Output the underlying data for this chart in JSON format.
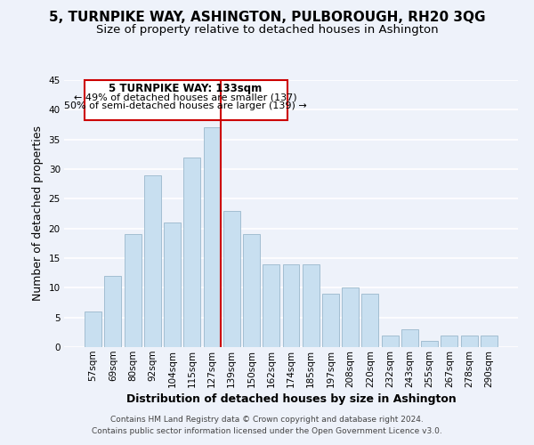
{
  "title": "5, TURNPIKE WAY, ASHINGTON, PULBOROUGH, RH20 3QG",
  "subtitle": "Size of property relative to detached houses in Ashington",
  "xlabel": "Distribution of detached houses by size in Ashington",
  "ylabel": "Number of detached properties",
  "bar_labels": [
    "57sqm",
    "69sqm",
    "80sqm",
    "92sqm",
    "104sqm",
    "115sqm",
    "127sqm",
    "139sqm",
    "150sqm",
    "162sqm",
    "174sqm",
    "185sqm",
    "197sqm",
    "208sqm",
    "220sqm",
    "232sqm",
    "243sqm",
    "255sqm",
    "267sqm",
    "278sqm",
    "290sqm"
  ],
  "bar_values": [
    6,
    12,
    19,
    29,
    21,
    32,
    37,
    23,
    19,
    14,
    14,
    14,
    9,
    10,
    9,
    2,
    3,
    1,
    2,
    2,
    2
  ],
  "bar_color": "#c8dff0",
  "bar_edge_color": "#9ab8cc",
  "highlight_bar_index": 6,
  "highlight_color": "#cc0000",
  "ylim": [
    0,
    45
  ],
  "yticks": [
    0,
    5,
    10,
    15,
    20,
    25,
    30,
    35,
    40,
    45
  ],
  "annotation_title": "5 TURNPIKE WAY: 133sqm",
  "annotation_line1": "← 49% of detached houses are smaller (137)",
  "annotation_line2": "50% of semi-detached houses are larger (139) →",
  "annotation_box_color": "#ffffff",
  "annotation_box_edge": "#cc0000",
  "footer_line1": "Contains HM Land Registry data © Crown copyright and database right 2024.",
  "footer_line2": "Contains public sector information licensed under the Open Government Licence v3.0.",
  "background_color": "#eef2fa",
  "grid_color": "#ffffff",
  "title_fontsize": 11,
  "subtitle_fontsize": 9.5,
  "axis_label_fontsize": 9,
  "tick_fontsize": 7.5,
  "footer_fontsize": 6.5,
  "ann_title_fontsize": 8.5,
  "ann_text_fontsize": 8
}
